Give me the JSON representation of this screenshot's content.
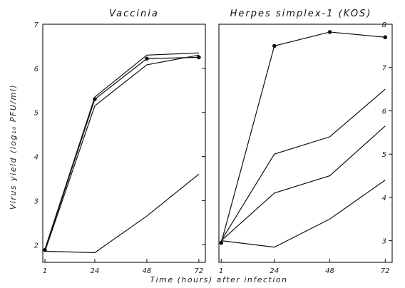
{
  "figure": {
    "ylabel": "Virus yield (log₁₀ PFU/ml)",
    "xlabel": "Time (hours) after infection"
  },
  "chart_data": [
    {
      "type": "line",
      "title": "Vaccinia",
      "xlabel": "Time (hours) after infection",
      "ylabel": "Virus yield (log₁₀ PFU/ml)",
      "x_ticks": [
        1,
        24,
        48,
        72
      ],
      "y_ticks": [
        2,
        3,
        4,
        5,
        6,
        7
      ],
      "xlim": [
        0,
        75
      ],
      "ylim": [
        1.6,
        7
      ],
      "grid": false,
      "series": [
        {
          "x": [
            1,
            24,
            48,
            72
          ],
          "values": [
            1.9,
            5.35,
            6.3,
            6.35
          ],
          "marker": "none"
        },
        {
          "x": [
            1,
            24,
            48,
            72
          ],
          "values": [
            1.88,
            5.3,
            6.22,
            6.25
          ],
          "marker": "dot"
        },
        {
          "x": [
            1,
            24,
            48,
            72
          ],
          "values": [
            1.85,
            5.15,
            6.08,
            6.3
          ],
          "marker": "none"
        },
        {
          "x": [
            1,
            24,
            48,
            72
          ],
          "values": [
            1.85,
            1.82,
            2.65,
            3.6
          ],
          "marker": "none"
        }
      ]
    },
    {
      "type": "line",
      "title": "Herpes simplex-1 (KOS)",
      "xlabel": "Time (hours) after infection",
      "ylabel": "Virus yield (log₁₀ PFU/ml)",
      "x_ticks": [
        1,
        24,
        48,
        72
      ],
      "y_ticks": [
        3,
        4,
        5,
        6,
        7,
        8
      ],
      "xlim": [
        0,
        75
      ],
      "ylim": [
        2.5,
        8
      ],
      "grid": false,
      "series": [
        {
          "x": [
            1,
            24,
            48,
            72
          ],
          "values": [
            2.95,
            7.5,
            7.82,
            7.7
          ],
          "marker": "dot"
        },
        {
          "x": [
            1,
            24,
            48,
            72
          ],
          "values": [
            3.0,
            5.0,
            5.4,
            6.5
          ],
          "marker": "none"
        },
        {
          "x": [
            1,
            24,
            48,
            72
          ],
          "values": [
            3.0,
            4.1,
            4.5,
            5.65
          ],
          "marker": "none"
        },
        {
          "x": [
            1,
            24,
            48,
            72
          ],
          "values": [
            3.0,
            2.85,
            3.5,
            4.4
          ],
          "marker": "none"
        }
      ]
    }
  ]
}
